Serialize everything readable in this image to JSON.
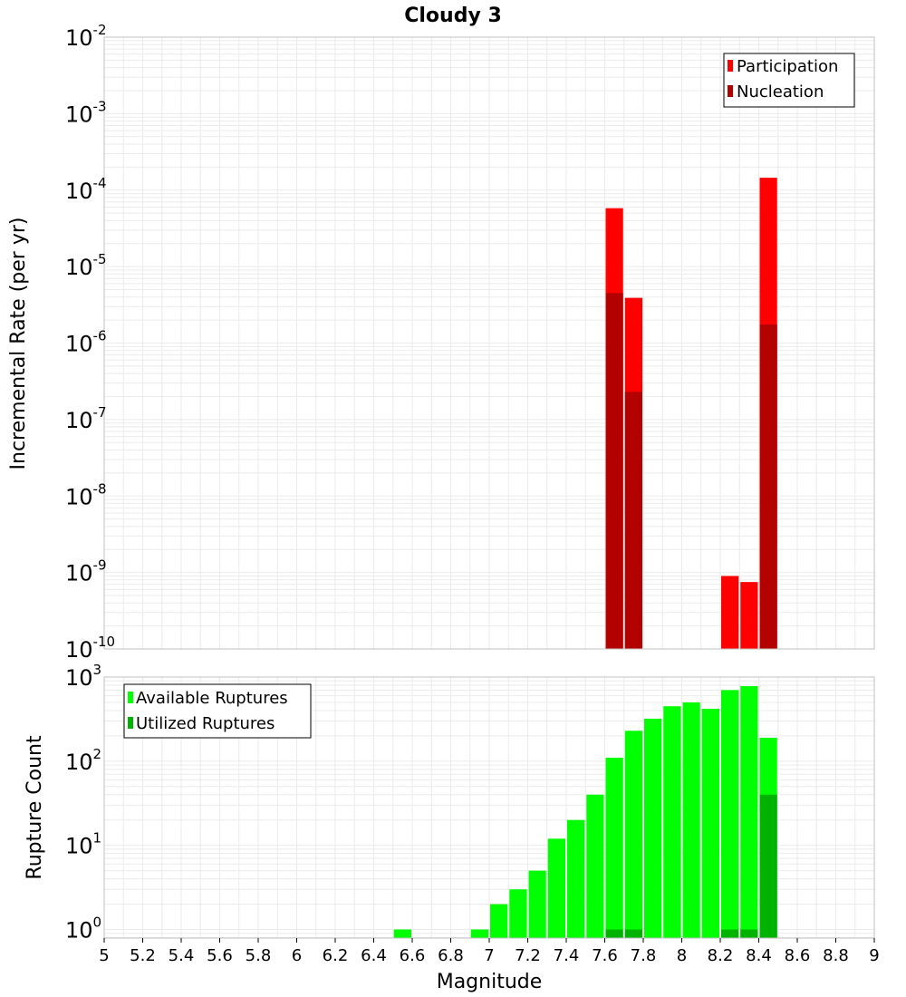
{
  "title": "Cloudy 3",
  "xlabel": "Magnitude",
  "x_ticks": [
    "5",
    "5.2",
    "5.4",
    "5.6",
    "5.8",
    "6",
    "6.2",
    "6.4",
    "6.6",
    "6.8",
    "7",
    "7.2",
    "7.4",
    "7.6",
    "7.8",
    "8",
    "8.2",
    "8.4",
    "8.6",
    "8.8",
    "9"
  ],
  "colors": {
    "participation": "#ff0000",
    "nucleation": "#b30000",
    "available": "#00ff00",
    "utilized": "#00b300",
    "grid": "#ebebeb",
    "axis_frame": "#c0c0c0"
  },
  "chart_data": [
    {
      "type": "bar",
      "panel": "top",
      "ylabel": "Incremental Rate (per yr)",
      "yscale": "log",
      "ylim": [
        1e-10,
        0.01
      ],
      "xlim": [
        5,
        9
      ],
      "bin_width": 0.1,
      "grid": true,
      "legend_position": "top-right",
      "y_tick_exponents": [
        "-2",
        "-3",
        "-4",
        "-5",
        "-6",
        "-7",
        "-8",
        "-9",
        "-10"
      ],
      "series": [
        {
          "name": "Participation",
          "color_key": "participation",
          "x": [
            7.65,
            7.75,
            8.25,
            8.35,
            8.45
          ],
          "values": [
            5.8e-05,
            3.9e-06,
            9e-10,
            7.5e-10,
            0.000145
          ]
        },
        {
          "name": "Nucleation",
          "color_key": "nucleation",
          "x": [
            7.65,
            7.75,
            8.45
          ],
          "values": [
            4.5e-06,
            2.3e-07,
            1.75e-06
          ]
        }
      ]
    },
    {
      "type": "bar",
      "panel": "bottom",
      "ylabel": "Rupture Count",
      "yscale": "log",
      "ylim": [
        0.79,
        1000
      ],
      "xlim": [
        5,
        9
      ],
      "bin_width": 0.1,
      "grid": true,
      "legend_position": "top-left",
      "y_tick_exponents": [
        "3",
        "2",
        "1",
        "0"
      ],
      "series": [
        {
          "name": "Available Ruptures",
          "color_key": "available",
          "x": [
            6.55,
            6.95,
            7.05,
            7.15,
            7.25,
            7.35,
            7.45,
            7.55,
            7.65,
            7.75,
            7.85,
            7.95,
            8.05,
            8.15,
            8.25,
            8.35,
            8.45
          ],
          "values": [
            1,
            1,
            2,
            3,
            5,
            12,
            20,
            40,
            110,
            230,
            320,
            450,
            500,
            420,
            700,
            780,
            190
          ]
        },
        {
          "name": "Utilized Ruptures",
          "color_key": "utilized",
          "x": [
            7.65,
            7.75,
            8.25,
            8.35,
            8.45
          ],
          "values": [
            1,
            1,
            1,
            1,
            40
          ]
        }
      ]
    }
  ]
}
